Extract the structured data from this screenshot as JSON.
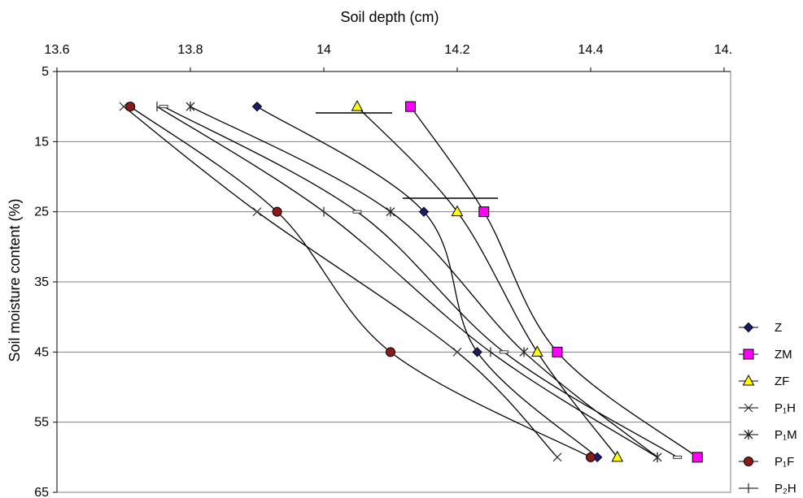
{
  "chart_data": {
    "type": "line",
    "title": "Soil depth (cm)",
    "xlabel": "",
    "ylabel": "Soil moisture content (%)",
    "x_axis_position": "top",
    "y_inverted": true,
    "xlim": [
      13.6,
      14.5
    ],
    "ylim": [
      5,
      65
    ],
    "x_ticks": [
      "13.6",
      "13.8",
      "14",
      "14.2",
      "14.4",
      "14."
    ],
    "y_ticks": [
      "5",
      "15",
      "25",
      "35",
      "45",
      "55",
      "65"
    ],
    "grid": "horizontal",
    "legend": "right",
    "series": [
      {
        "name": "Z",
        "marker": "diamond",
        "color": "#1a1a6e",
        "x": [
          13.9,
          14.15,
          14.23,
          14.41
        ],
        "y": [
          10,
          25,
          45,
          60
        ]
      },
      {
        "name": "ZM",
        "marker": "square",
        "color": "#ff00ff",
        "x": [
          14.13,
          14.24,
          14.35,
          14.56
        ],
        "y": [
          10,
          25,
          45,
          60
        ]
      },
      {
        "name": "ZF",
        "marker": "triangle",
        "color": "#ffff00",
        "x": [
          14.05,
          14.2,
          14.32,
          14.44
        ],
        "y": [
          10,
          25,
          45,
          60
        ]
      },
      {
        "name": "P₁H",
        "marker": "x",
        "color": "#333333",
        "x": [
          13.7,
          13.9,
          14.2,
          14.35
        ],
        "y": [
          10,
          25,
          45,
          60
        ]
      },
      {
        "name": "P₁M",
        "marker": "star",
        "color": "#222222",
        "x": [
          13.8,
          14.1,
          14.3,
          14.5
        ],
        "y": [
          10,
          25,
          45,
          60
        ]
      },
      {
        "name": "P₁F",
        "marker": "circle",
        "color": "#8b1a1a",
        "x": [
          13.71,
          13.93,
          14.1,
          14.4
        ],
        "y": [
          10,
          25,
          45,
          60
        ]
      },
      {
        "name": "P₂H",
        "marker": "plus",
        "color": "#333333",
        "x": [
          13.75,
          14.0,
          14.25,
          14.5
        ],
        "y": [
          10,
          25,
          45,
          60
        ]
      },
      {
        "name": "",
        "marker": "dash",
        "color": "#333333",
        "x": [
          13.76,
          14.05,
          14.27,
          14.53
        ],
        "y": [
          10,
          25,
          45,
          60
        ]
      }
    ]
  }
}
